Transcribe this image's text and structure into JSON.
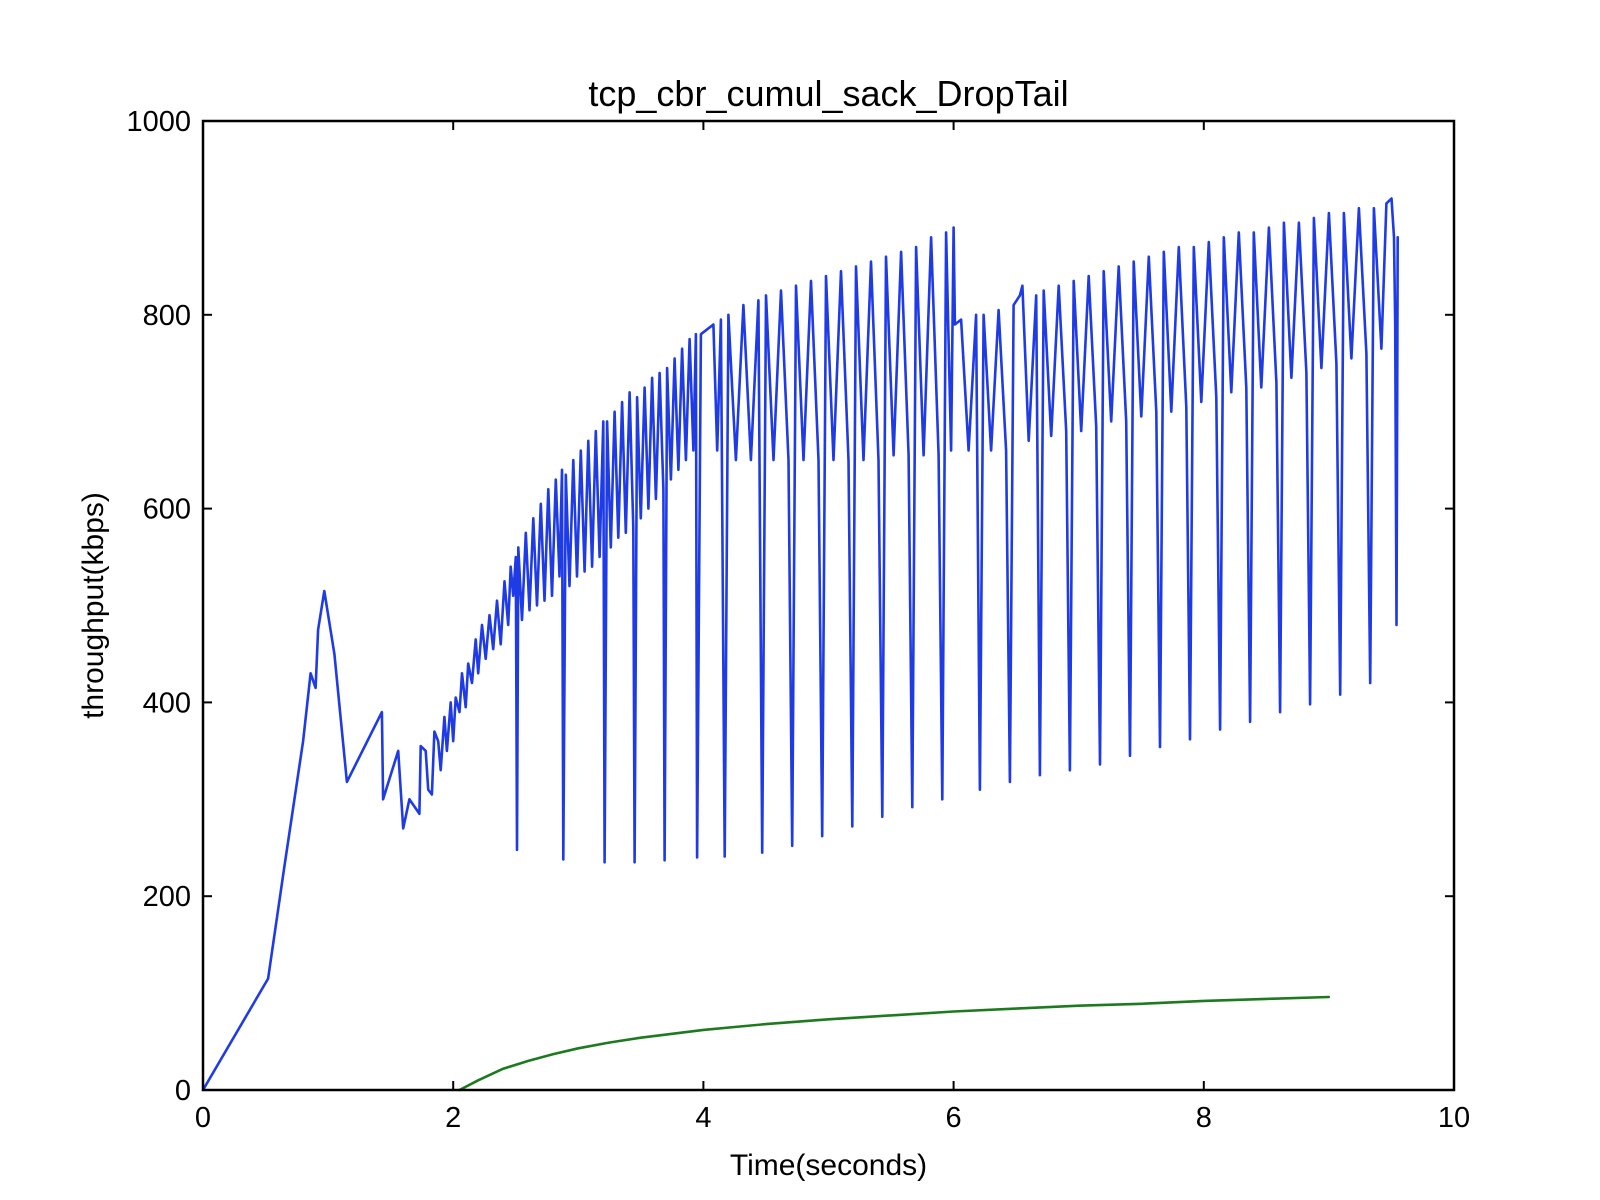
{
  "chart_data": {
    "type": "line",
    "title": "tcp_cbr_cumul_sack_DropTail",
    "xlabel": "Time(seconds)",
    "ylabel": "throughput(kbps)",
    "xlim": [
      0,
      10
    ],
    "ylim": [
      0,
      1000
    ],
    "xticks": [
      0,
      2,
      4,
      6,
      8,
      10
    ],
    "yticks": [
      0,
      200,
      400,
      600,
      800,
      1000
    ],
    "grid": false,
    "legend": "none",
    "series": [
      {
        "color": "#1f3be6",
        "points": [
          [
            0.0,
            0
          ],
          [
            0.52,
            115
          ],
          [
            0.65,
            230
          ],
          [
            0.8,
            360
          ],
          [
            0.86,
            430
          ],
          [
            0.9,
            415
          ],
          [
            0.92,
            475
          ],
          [
            0.97,
            515
          ],
          [
            1.05,
            450
          ],
          [
            1.15,
            318
          ],
          [
            1.43,
            390
          ],
          [
            1.44,
            300
          ],
          [
            1.56,
            350
          ],
          [
            1.6,
            270
          ],
          [
            1.65,
            300
          ],
          [
            1.73,
            285
          ],
          [
            1.74,
            355
          ],
          [
            1.78,
            350
          ],
          [
            1.8,
            310
          ],
          [
            1.83,
            305
          ],
          [
            1.85,
            370
          ],
          [
            1.88,
            360
          ],
          [
            1.9,
            330
          ],
          [
            1.93,
            385
          ],
          [
            1.95,
            350
          ],
          [
            1.98,
            400
          ],
          [
            2.0,
            360
          ],
          [
            2.02,
            405
          ],
          [
            2.05,
            390
          ],
          [
            2.07,
            430
          ],
          [
            2.1,
            395
          ],
          [
            2.12,
            440
          ],
          [
            2.15,
            420
          ],
          [
            2.18,
            465
          ],
          [
            2.2,
            430
          ],
          [
            2.23,
            480
          ],
          [
            2.26,
            445
          ],
          [
            2.29,
            490
          ],
          [
            2.32,
            455
          ],
          [
            2.35,
            505
          ],
          [
            2.38,
            460
          ],
          [
            2.41,
            525
          ],
          [
            2.44,
            480
          ],
          [
            2.46,
            540
          ],
          [
            2.48,
            510
          ],
          [
            2.5,
            550
          ],
          [
            2.51,
            248
          ],
          [
            2.52,
            560
          ],
          [
            2.55,
            485
          ],
          [
            2.58,
            575
          ],
          [
            2.61,
            495
          ],
          [
            2.64,
            590
          ],
          [
            2.67,
            500
          ],
          [
            2.7,
            605
          ],
          [
            2.73,
            505
          ],
          [
            2.76,
            620
          ],
          [
            2.79,
            510
          ],
          [
            2.82,
            630
          ],
          [
            2.85,
            530
          ],
          [
            2.87,
            640
          ],
          [
            2.88,
            238
          ],
          [
            2.9,
            635
          ],
          [
            2.93,
            520
          ],
          [
            2.96,
            650
          ],
          [
            2.99,
            530
          ],
          [
            3.02,
            660
          ],
          [
            3.05,
            535
          ],
          [
            3.08,
            670
          ],
          [
            3.11,
            540
          ],
          [
            3.14,
            680
          ],
          [
            3.17,
            550
          ],
          [
            3.2,
            690
          ],
          [
            3.21,
            235
          ],
          [
            3.23,
            690
          ],
          [
            3.26,
            560
          ],
          [
            3.29,
            700
          ],
          [
            3.32,
            570
          ],
          [
            3.35,
            710
          ],
          [
            3.38,
            575
          ],
          [
            3.41,
            720
          ],
          [
            3.44,
            580
          ],
          [
            3.45,
            235
          ],
          [
            3.47,
            715
          ],
          [
            3.5,
            590
          ],
          [
            3.53,
            725
          ],
          [
            3.56,
            600
          ],
          [
            3.59,
            735
          ],
          [
            3.62,
            610
          ],
          [
            3.65,
            740
          ],
          [
            3.68,
            620
          ],
          [
            3.69,
            237
          ],
          [
            3.71,
            745
          ],
          [
            3.74,
            630
          ],
          [
            3.77,
            755
          ],
          [
            3.8,
            640
          ],
          [
            3.83,
            765
          ],
          [
            3.86,
            650
          ],
          [
            3.89,
            775
          ],
          [
            3.92,
            660
          ],
          [
            3.94,
            780
          ],
          [
            3.95,
            240
          ],
          [
            3.98,
            780
          ],
          [
            4.08,
            790
          ],
          [
            4.11,
            660
          ],
          [
            4.14,
            795
          ],
          [
            4.17,
            241
          ],
          [
            4.2,
            800
          ],
          [
            4.26,
            650
          ],
          [
            4.32,
            810
          ],
          [
            4.38,
            650
          ],
          [
            4.44,
            815
          ],
          [
            4.47,
            245
          ],
          [
            4.5,
            820
          ],
          [
            4.56,
            650
          ],
          [
            4.62,
            825
          ],
          [
            4.68,
            650
          ],
          [
            4.71,
            252
          ],
          [
            4.74,
            830
          ],
          [
            4.8,
            650
          ],
          [
            4.86,
            835
          ],
          [
            4.92,
            650
          ],
          [
            4.95,
            262
          ],
          [
            4.98,
            840
          ],
          [
            5.04,
            650
          ],
          [
            5.1,
            845
          ],
          [
            5.16,
            650
          ],
          [
            5.19,
            272
          ],
          [
            5.22,
            850
          ],
          [
            5.28,
            650
          ],
          [
            5.34,
            855
          ],
          [
            5.4,
            650
          ],
          [
            5.43,
            282
          ],
          [
            5.46,
            860
          ],
          [
            5.52,
            655
          ],
          [
            5.58,
            865
          ],
          [
            5.64,
            655
          ],
          [
            5.67,
            292
          ],
          [
            5.7,
            870
          ],
          [
            5.76,
            655
          ],
          [
            5.82,
            880
          ],
          [
            5.88,
            655
          ],
          [
            5.91,
            300
          ],
          [
            5.94,
            885
          ],
          [
            5.98,
            660
          ],
          [
            6.0,
            890
          ],
          [
            6.01,
            790
          ],
          [
            6.06,
            795
          ],
          [
            6.12,
            660
          ],
          [
            6.18,
            800
          ],
          [
            6.21,
            310
          ],
          [
            6.24,
            800
          ],
          [
            6.3,
            660
          ],
          [
            6.36,
            805
          ],
          [
            6.42,
            660
          ],
          [
            6.45,
            318
          ],
          [
            6.48,
            810
          ],
          [
            6.53,
            820
          ],
          [
            6.55,
            830
          ],
          [
            6.6,
            670
          ],
          [
            6.66,
            820
          ],
          [
            6.69,
            325
          ],
          [
            6.72,
            825
          ],
          [
            6.78,
            675
          ],
          [
            6.84,
            830
          ],
          [
            6.9,
            680
          ],
          [
            6.93,
            330
          ],
          [
            6.96,
            835
          ],
          [
            7.02,
            680
          ],
          [
            7.08,
            840
          ],
          [
            7.14,
            685
          ],
          [
            7.17,
            336
          ],
          [
            7.2,
            845
          ],
          [
            7.26,
            690
          ],
          [
            7.32,
            850
          ],
          [
            7.38,
            690
          ],
          [
            7.41,
            345
          ],
          [
            7.44,
            855
          ],
          [
            7.5,
            695
          ],
          [
            7.56,
            860
          ],
          [
            7.62,
            700
          ],
          [
            7.65,
            354
          ],
          [
            7.68,
            865
          ],
          [
            7.74,
            700
          ],
          [
            7.8,
            870
          ],
          [
            7.86,
            705
          ],
          [
            7.89,
            362
          ],
          [
            7.92,
            870
          ],
          [
            7.98,
            710
          ],
          [
            8.04,
            875
          ],
          [
            8.1,
            715
          ],
          [
            8.13,
            372
          ],
          [
            8.16,
            880
          ],
          [
            8.22,
            720
          ],
          [
            8.28,
            885
          ],
          [
            8.34,
            725
          ],
          [
            8.37,
            380
          ],
          [
            8.4,
            885
          ],
          [
            8.46,
            725
          ],
          [
            8.52,
            890
          ],
          [
            8.58,
            730
          ],
          [
            8.61,
            390
          ],
          [
            8.64,
            895
          ],
          [
            8.7,
            735
          ],
          [
            8.76,
            895
          ],
          [
            8.82,
            740
          ],
          [
            8.85,
            398
          ],
          [
            8.88,
            900
          ],
          [
            8.94,
            745
          ],
          [
            9.0,
            905
          ],
          [
            9.06,
            750
          ],
          [
            9.09,
            408
          ],
          [
            9.12,
            905
          ],
          [
            9.18,
            755
          ],
          [
            9.24,
            910
          ],
          [
            9.3,
            760
          ],
          [
            9.33,
            420
          ],
          [
            9.36,
            910
          ],
          [
            9.42,
            765
          ],
          [
            9.46,
            915
          ],
          [
            9.5,
            920
          ],
          [
            9.52,
            880
          ],
          [
            9.53,
            790
          ],
          [
            9.54,
            480
          ],
          [
            9.55,
            880
          ]
        ]
      },
      {
        "color": "#1e7a1e",
        "points": [
          [
            2.05,
            0
          ],
          [
            2.2,
            10
          ],
          [
            2.4,
            22
          ],
          [
            2.6,
            30
          ],
          [
            2.8,
            37
          ],
          [
            3.0,
            43
          ],
          [
            3.25,
            49
          ],
          [
            3.5,
            54
          ],
          [
            3.75,
            58
          ],
          [
            4.0,
            62
          ],
          [
            4.25,
            65
          ],
          [
            4.5,
            68
          ],
          [
            5.0,
            73
          ],
          [
            5.5,
            77
          ],
          [
            6.0,
            81
          ],
          [
            6.5,
            84
          ],
          [
            7.0,
            87
          ],
          [
            7.5,
            89
          ],
          [
            8.0,
            92
          ],
          [
            8.5,
            94
          ],
          [
            9.0,
            96
          ]
        ]
      }
    ]
  }
}
